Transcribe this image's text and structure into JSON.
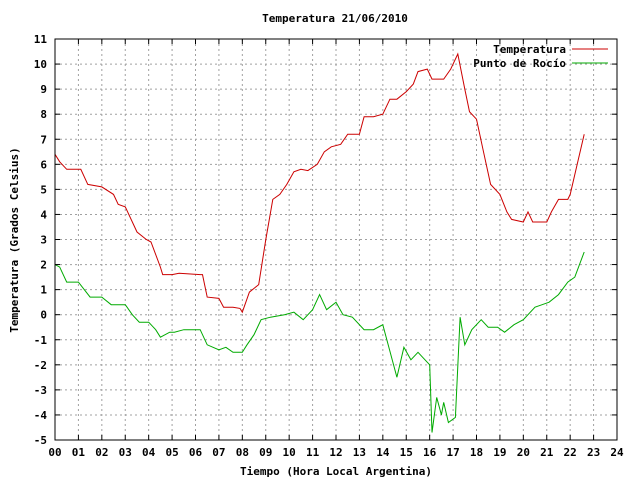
{
  "chart_data": {
    "type": "line",
    "title": "Temperatura 21/06/2010",
    "xlabel": "Tiempo (Hora Local Argentina)",
    "ylabel": "Temperatura (Grados Celsius)",
    "xlim": [
      0,
      24
    ],
    "ylim": [
      -5,
      11
    ],
    "x_ticks": [
      0,
      1,
      2,
      3,
      4,
      5,
      6,
      7,
      8,
      9,
      10,
      11,
      12,
      13,
      14,
      15,
      16,
      17,
      18,
      19,
      20,
      21,
      22,
      23,
      24
    ],
    "x_tick_labels": [
      "00",
      "01",
      "02",
      "03",
      "04",
      "05",
      "06",
      "07",
      "08",
      "09",
      "10",
      "11",
      "12",
      "13",
      "14",
      "15",
      "16",
      "17",
      "18",
      "19",
      "20",
      "21",
      "22",
      "23",
      "24"
    ],
    "y_ticks": [
      -5,
      -4,
      -3,
      -2,
      -1,
      0,
      1,
      2,
      3,
      4,
      5,
      6,
      7,
      8,
      9,
      10,
      11
    ],
    "grid": true,
    "legend_position": "top-right",
    "series": [
      {
        "name": "Temperatura",
        "color": "#cc0000",
        "points": [
          [
            0,
            6.4
          ],
          [
            0.2,
            6.1
          ],
          [
            0.5,
            5.8
          ],
          [
            1.1,
            5.8
          ],
          [
            1.4,
            5.2
          ],
          [
            2.0,
            5.1
          ],
          [
            2.5,
            4.8
          ],
          [
            2.7,
            4.4
          ],
          [
            3.0,
            4.3
          ],
          [
            3.5,
            3.3
          ],
          [
            3.9,
            3.0
          ],
          [
            4.1,
            2.9
          ],
          [
            4.5,
            1.9
          ],
          [
            4.6,
            1.6
          ],
          [
            5.0,
            1.6
          ],
          [
            5.3,
            1.65
          ],
          [
            6.2,
            1.6
          ],
          [
            6.3,
            1.6
          ],
          [
            6.5,
            0.7
          ],
          [
            7.0,
            0.65
          ],
          [
            7.2,
            0.3
          ],
          [
            7.6,
            0.3
          ],
          [
            7.9,
            0.25
          ],
          [
            8.0,
            0.1
          ],
          [
            8.3,
            0.9
          ],
          [
            8.7,
            1.2
          ],
          [
            9.0,
            3.0
          ],
          [
            9.3,
            4.6
          ],
          [
            9.6,
            4.8
          ],
          [
            9.9,
            5.2
          ],
          [
            10.2,
            5.7
          ],
          [
            10.5,
            5.8
          ],
          [
            10.8,
            5.75
          ],
          [
            11.2,
            6.0
          ],
          [
            11.5,
            6.5
          ],
          [
            11.8,
            6.7
          ],
          [
            12.2,
            6.8
          ],
          [
            12.5,
            7.2
          ],
          [
            13.0,
            7.2
          ],
          [
            13.2,
            7.9
          ],
          [
            13.6,
            7.9
          ],
          [
            14.0,
            8.0
          ],
          [
            14.3,
            8.6
          ],
          [
            14.6,
            8.6
          ],
          [
            15.0,
            8.9
          ],
          [
            15.3,
            9.2
          ],
          [
            15.5,
            9.7
          ],
          [
            15.9,
            9.8
          ],
          [
            16.1,
            9.4
          ],
          [
            16.6,
            9.4
          ],
          [
            16.9,
            9.8
          ],
          [
            17.2,
            10.4
          ],
          [
            17.5,
            9.0
          ],
          [
            17.7,
            8.1
          ],
          [
            18.0,
            7.8
          ],
          [
            18.3,
            6.5
          ],
          [
            18.6,
            5.2
          ],
          [
            19.0,
            4.8
          ],
          [
            19.3,
            4.1
          ],
          [
            19.5,
            3.8
          ],
          [
            20.0,
            3.7
          ],
          [
            20.2,
            4.1
          ],
          [
            20.4,
            3.7
          ],
          [
            21.0,
            3.7
          ],
          [
            21.2,
            4.1
          ],
          [
            21.5,
            4.6
          ],
          [
            21.9,
            4.6
          ],
          [
            22.0,
            4.8
          ],
          [
            22.3,
            6.0
          ],
          [
            22.6,
            7.2
          ]
        ]
      },
      {
        "name": "Punto de Rocío",
        "color": "#00aa00",
        "points": [
          [
            0,
            2.0
          ],
          [
            0.2,
            1.9
          ],
          [
            0.5,
            1.3
          ],
          [
            1.0,
            1.3
          ],
          [
            1.5,
            0.7
          ],
          [
            2.0,
            0.7
          ],
          [
            2.4,
            0.4
          ],
          [
            3.0,
            0.4
          ],
          [
            3.3,
            0.0
          ],
          [
            3.6,
            -0.3
          ],
          [
            4.0,
            -0.3
          ],
          [
            4.3,
            -0.6
          ],
          [
            4.5,
            -0.9
          ],
          [
            4.9,
            -0.7
          ],
          [
            5.1,
            -0.7
          ],
          [
            5.5,
            -0.6
          ],
          [
            6.2,
            -0.6
          ],
          [
            6.5,
            -1.2
          ],
          [
            7.0,
            -1.4
          ],
          [
            7.3,
            -1.3
          ],
          [
            7.6,
            -1.5
          ],
          [
            8.0,
            -1.5
          ],
          [
            8.2,
            -1.2
          ],
          [
            8.5,
            -0.8
          ],
          [
            8.8,
            -0.2
          ],
          [
            9.2,
            -0.1
          ],
          [
            9.8,
            0.0
          ],
          [
            10.2,
            0.1
          ],
          [
            10.6,
            -0.2
          ],
          [
            11.0,
            0.2
          ],
          [
            11.3,
            0.8
          ],
          [
            11.6,
            0.2
          ],
          [
            12.0,
            0.5
          ],
          [
            12.3,
            0.0
          ],
          [
            12.7,
            -0.1
          ],
          [
            13.2,
            -0.6
          ],
          [
            13.6,
            -0.6
          ],
          [
            14.0,
            -0.4
          ],
          [
            14.4,
            -1.8
          ],
          [
            14.6,
            -2.5
          ],
          [
            14.9,
            -1.3
          ],
          [
            15.2,
            -1.8
          ],
          [
            15.5,
            -1.5
          ],
          [
            15.8,
            -1.8
          ],
          [
            16.0,
            -2.0
          ],
          [
            16.1,
            -4.7
          ],
          [
            16.3,
            -3.3
          ],
          [
            16.5,
            -4.0
          ],
          [
            16.6,
            -3.5
          ],
          [
            16.8,
            -4.3
          ],
          [
            17.1,
            -4.1
          ],
          [
            17.3,
            -0.1
          ],
          [
            17.5,
            -1.2
          ],
          [
            17.8,
            -0.6
          ],
          [
            18.2,
            -0.2
          ],
          [
            18.5,
            -0.5
          ],
          [
            18.9,
            -0.5
          ],
          [
            19.2,
            -0.7
          ],
          [
            19.6,
            -0.4
          ],
          [
            20.0,
            -0.2
          ],
          [
            20.5,
            0.3
          ],
          [
            20.8,
            0.4
          ],
          [
            21.1,
            0.5
          ],
          [
            21.5,
            0.8
          ],
          [
            21.9,
            1.3
          ],
          [
            22.2,
            1.5
          ],
          [
            22.6,
            2.5
          ]
        ]
      }
    ]
  }
}
